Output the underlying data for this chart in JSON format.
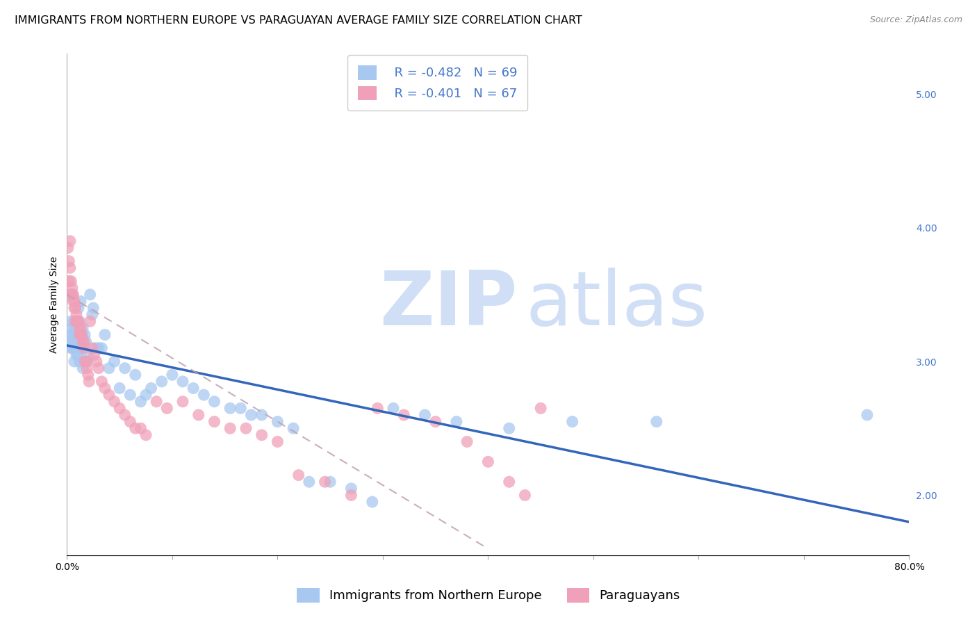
{
  "title": "IMMIGRANTS FROM NORTHERN EUROPE VS PARAGUAYAN AVERAGE FAMILY SIZE CORRELATION CHART",
  "source": "Source: ZipAtlas.com",
  "ylabel": "Average Family Size",
  "right_yticks": [
    2.0,
    3.0,
    4.0,
    5.0
  ],
  "xlim": [
    0.0,
    0.8
  ],
  "ylim": [
    1.55,
    5.3
  ],
  "series": [
    {
      "name": "Immigrants from Northern Europe",
      "R_label": "R = -0.482",
      "N_label": "N = 69",
      "color": "#a8c8f0",
      "line_color": "#3366bb",
      "line_style": "solid",
      "line_x0": 0.0,
      "line_x1": 0.8,
      "line_y0": 3.12,
      "line_y1": 1.8,
      "x": [
        0.002,
        0.003,
        0.003,
        0.004,
        0.004,
        0.005,
        0.005,
        0.006,
        0.006,
        0.007,
        0.007,
        0.008,
        0.008,
        0.009,
        0.009,
        0.01,
        0.01,
        0.011,
        0.012,
        0.012,
        0.013,
        0.013,
        0.014,
        0.015,
        0.015,
        0.016,
        0.017,
        0.018,
        0.019,
        0.02,
        0.022,
        0.024,
        0.025,
        0.027,
        0.03,
        0.033,
        0.036,
        0.04,
        0.045,
        0.05,
        0.055,
        0.06,
        0.065,
        0.07,
        0.075,
        0.08,
        0.09,
        0.1,
        0.11,
        0.12,
        0.13,
        0.14,
        0.155,
        0.165,
        0.175,
        0.185,
        0.2,
        0.215,
        0.23,
        0.25,
        0.27,
        0.29,
        0.31,
        0.34,
        0.37,
        0.42,
        0.48,
        0.56,
        0.76
      ],
      "y": [
        3.15,
        3.2,
        3.5,
        3.1,
        3.3,
        3.1,
        3.25,
        3.2,
        3.15,
        3.3,
        3.0,
        3.1,
        3.25,
        3.05,
        3.2,
        3.15,
        3.05,
        3.4,
        3.3,
        3.0,
        3.45,
        3.1,
        3.2,
        2.95,
        3.25,
        3.1,
        3.2,
        3.15,
        3.0,
        3.05,
        3.5,
        3.35,
        3.4,
        3.1,
        3.1,
        3.1,
        3.2,
        2.95,
        3.0,
        2.8,
        2.95,
        2.75,
        2.9,
        2.7,
        2.75,
        2.8,
        2.85,
        2.9,
        2.85,
        2.8,
        2.75,
        2.7,
        2.65,
        2.65,
        2.6,
        2.6,
        2.55,
        2.5,
        2.1,
        2.1,
        2.05,
        1.95,
        2.65,
        2.6,
        2.55,
        2.5,
        2.55,
        2.55,
        2.6
      ]
    },
    {
      "name": "Paraguayans",
      "R_label": "R = -0.401",
      "N_label": "N = 67",
      "color": "#f0a0b8",
      "line_color": "#c0a0b0",
      "line_style": "dashed",
      "line_x0": 0.0,
      "line_x1": 0.4,
      "line_y0": 3.5,
      "line_y1": 1.6,
      "x": [
        0.001,
        0.002,
        0.002,
        0.003,
        0.003,
        0.004,
        0.004,
        0.005,
        0.005,
        0.006,
        0.006,
        0.007,
        0.007,
        0.008,
        0.008,
        0.009,
        0.01,
        0.01,
        0.011,
        0.012,
        0.012,
        0.013,
        0.013,
        0.014,
        0.015,
        0.016,
        0.016,
        0.017,
        0.018,
        0.019,
        0.02,
        0.021,
        0.022,
        0.024,
        0.026,
        0.028,
        0.03,
        0.033,
        0.036,
        0.04,
        0.045,
        0.05,
        0.055,
        0.06,
        0.065,
        0.07,
        0.075,
        0.085,
        0.095,
        0.11,
        0.125,
        0.14,
        0.155,
        0.17,
        0.185,
        0.2,
        0.22,
        0.245,
        0.27,
        0.295,
        0.32,
        0.35,
        0.38,
        0.4,
        0.42,
        0.435,
        0.45
      ],
      "y": [
        3.85,
        3.75,
        3.6,
        3.9,
        3.7,
        3.6,
        3.5,
        3.55,
        3.5,
        3.5,
        3.45,
        3.45,
        3.4,
        3.4,
        3.3,
        3.35,
        3.3,
        3.3,
        3.3,
        3.2,
        3.25,
        3.25,
        3.2,
        3.2,
        3.15,
        3.1,
        3.15,
        3.0,
        3.0,
        2.95,
        2.9,
        2.85,
        3.3,
        3.1,
        3.05,
        3.0,
        2.95,
        2.85,
        2.8,
        2.75,
        2.7,
        2.65,
        2.6,
        2.55,
        2.5,
        2.5,
        2.45,
        2.7,
        2.65,
        2.7,
        2.6,
        2.55,
        2.5,
        2.5,
        2.45,
        2.4,
        2.15,
        2.1,
        2.0,
        2.65,
        2.6,
        2.55,
        2.4,
        2.25,
        2.1,
        2.0,
        2.65
      ]
    }
  ],
  "watermark_zip": "ZIP",
  "watermark_atlas": "atlas",
  "watermark_color": "#d0dff5",
  "background_color": "#ffffff",
  "grid_color": "#cccccc",
  "title_fontsize": 11.5,
  "axis_label_fontsize": 10,
  "tick_fontsize": 10,
  "legend_fontsize": 13,
  "legend_color": "#4477cc"
}
